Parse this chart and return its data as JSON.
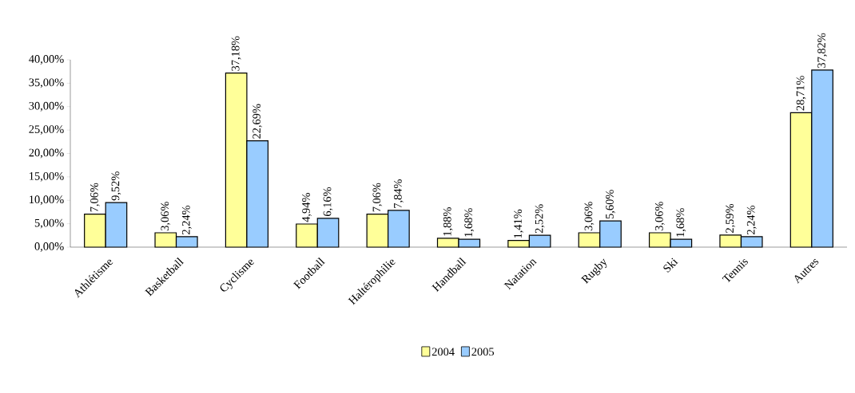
{
  "chart_data": {
    "type": "bar",
    "categories": [
      "Athlétisme",
      "Basketball",
      "Cyclisme",
      "Football",
      "Haltérophilie",
      "Handball",
      "Natation",
      "Rugby",
      "Ski",
      "Tennis",
      "Autres"
    ],
    "series": [
      {
        "name": "2004",
        "color": "#ffff99",
        "values": [
          7.06,
          3.06,
          37.18,
          4.94,
          7.06,
          1.88,
          1.41,
          3.06,
          3.06,
          2.59,
          28.71
        ],
        "value_labels": [
          "7,06%",
          "3,06%",
          "37,18%",
          "4,94%",
          "7,06%",
          "1,88%",
          "1,41%",
          "3,06%",
          "3,06%",
          "2,59%",
          "28,71%"
        ]
      },
      {
        "name": "2005",
        "color": "#99ccff",
        "values": [
          9.52,
          2.24,
          22.69,
          6.16,
          7.84,
          1.68,
          2.52,
          5.6,
          1.68,
          2.24,
          37.82
        ],
        "value_labels": [
          "9,52%",
          "2,24%",
          "22,69%",
          "6,16%",
          "7,84%",
          "1,68%",
          "2,52%",
          "5,60%",
          "1,68%",
          "2,24%",
          "37,82%"
        ]
      }
    ],
    "ylim": [
      0,
      40
    ],
    "yticks": [
      {
        "value": 0,
        "label": "0,00%"
      },
      {
        "value": 5,
        "label": "5,00%"
      },
      {
        "value": 10,
        "label": "10,00%"
      },
      {
        "value": 15,
        "label": "15,00%"
      },
      {
        "value": 20,
        "label": "20,00%"
      },
      {
        "value": 25,
        "label": "25,00%"
      },
      {
        "value": 30,
        "label": "30,00%"
      },
      {
        "value": 35,
        "label": "35,00%"
      },
      {
        "value": 40,
        "label": "40,00%"
      }
    ],
    "legend": "bottom",
    "grid": false
  }
}
